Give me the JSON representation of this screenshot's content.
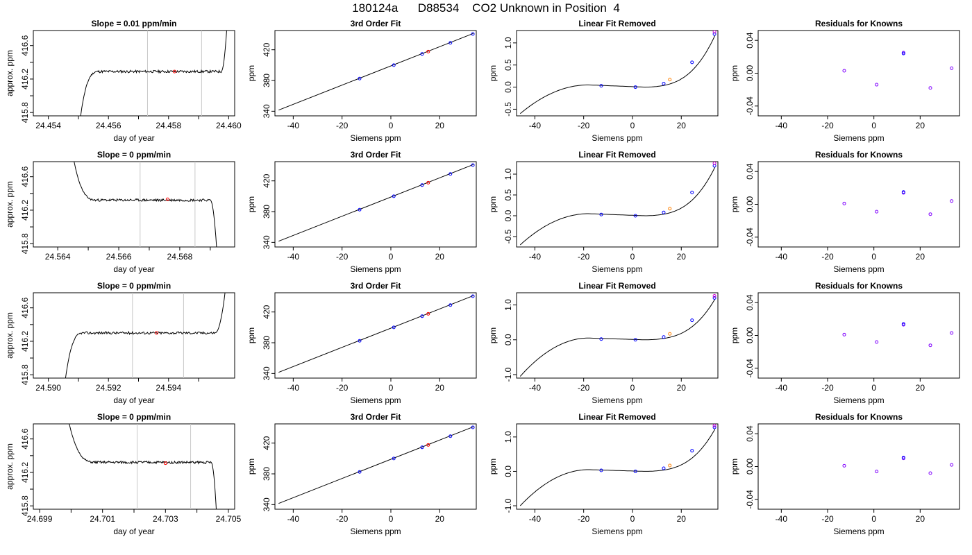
{
  "figure": {
    "title": "180124a      D88534    CO2 Unknown in Position  4"
  },
  "chart_data": [
    {
      "type": "line",
      "row": 1,
      "col": 1,
      "title": "Slope =  0.01  ppm/min",
      "xlabel": "day of year",
      "ylabel": "approx. ppm",
      "xlim": [
        24.4535,
        24.4602
      ],
      "ylim": [
        415.76,
        416.78
      ],
      "xticks": [
        24.454,
        24.456,
        24.458,
        24.46
      ],
      "xtick_labels": [
        "24.454",
        "24.456",
        "24.458",
        "24.460"
      ],
      "xminor_ticks": [
        24.455,
        24.457,
        24.459
      ],
      "yticks": [
        415.8,
        416.2,
        416.6
      ],
      "yminor_ticks": [
        416.0,
        416.4
      ],
      "ytick_labels": [
        "415.8",
        "416.2",
        "416.6"
      ],
      "vlines": [
        24.4573,
        24.4591
      ],
      "trace": {
        "start": 24.455,
        "end": 24.46,
        "rise_end": 24.4557,
        "plateau": 416.29,
        "bottom": 415.55,
        "top": 417.2,
        "jump_at": 24.45975,
        "jump_dir": "up",
        "seed": 11
      },
      "point": {
        "x": 24.4582,
        "y": 416.29,
        "color": "#ff0000"
      }
    },
    {
      "type": "scatter",
      "row": 1,
      "col": 2,
      "title": "3rd Order Fit",
      "xlabel": "Siemens ppm",
      "ylabel": "ppm",
      "xlim": [
        -47.5,
        35
      ],
      "ylim": [
        334,
        445
      ],
      "xticks": [
        -40,
        -20,
        0,
        20
      ],
      "xtick_labels": [
        "-40",
        "-20",
        "0",
        "20"
      ],
      "yticks": [
        340,
        380,
        420
      ],
      "ytick_labels": [
        "340",
        "380",
        "420"
      ],
      "curve": [
        [
          -46,
          341.5
        ],
        [
          33.8,
          441.2
        ]
      ],
      "known_points": [
        [
          -12.8,
          382.5
        ],
        [
          1.2,
          400.0
        ],
        [
          12.8,
          414.5
        ],
        [
          24.4,
          429.0
        ],
        [
          33.6,
          440.5
        ]
      ],
      "unknown_point": [
        15.3,
        417.6
      ],
      "known_color": "#0000ff",
      "unknown_color": "#ff0000"
    },
    {
      "type": "scatter",
      "row": 1,
      "col": 3,
      "title": "Linear Fit Removed",
      "xlabel": "Siemens ppm",
      "ylabel": "ppm",
      "xlim": [
        -47.5,
        35
      ],
      "ylim": [
        -0.65,
        1.28
      ],
      "xticks": [
        -40,
        -20,
        0,
        20
      ],
      "xtick_labels": [
        "-40",
        "-20",
        "0",
        "20"
      ],
      "yticks": [
        -0.5,
        0.0,
        0.5,
        1.0
      ],
      "ytick_labels": [
        "-0.5",
        "0.0",
        "0.5",
        "1.0"
      ],
      "curve_fn": {
        "a": 0.00027,
        "b": 0.0,
        "c": 0.0025,
        "x0": -18.0,
        "cubic_x": [
          -46,
          33.8
        ],
        "ends": [
          -0.6,
          1.22
        ]
      },
      "known_points": [
        [
          -12.8,
          0.03
        ],
        [
          1.2,
          0.0
        ],
        [
          12.8,
          0.08
        ],
        [
          24.4,
          0.56
        ],
        [
          33.6,
          1.2
        ]
      ],
      "known_points_2": [
        [
          33.6,
          1.25
        ]
      ],
      "unknown_point": [
        15.3,
        0.17
      ],
      "known_color": "#0000ff",
      "known2_color": "#d000d0",
      "unknown_color": "#ff8000"
    },
    {
      "type": "scatter",
      "row": 1,
      "col": 4,
      "title": "Residuals for Knowns",
      "xlabel": "Siemens ppm",
      "ylabel": "ppm",
      "xlim": [
        -50,
        37
      ],
      "ylim": [
        -0.052,
        0.052
      ],
      "xticks": [
        -40,
        -20,
        0,
        20
      ],
      "xtick_labels": [
        "-40",
        "-20",
        "0",
        "20"
      ],
      "yticks": [
        -0.04,
        0.0,
        0.04
      ],
      "ytick_labels": [
        "-0.04",
        "0.00",
        "0.04"
      ],
      "points_a": [
        [
          -12.8,
          0.003
        ],
        [
          1.2,
          -0.014
        ],
        [
          12.8,
          0.025
        ],
        [
          24.4,
          -0.018
        ],
        [
          33.6,
          0.006
        ]
      ],
      "points_b": [
        [
          12.8,
          0.024
        ]
      ],
      "color_a": "#8000ff",
      "color_b": "#0000ff"
    },
    {
      "type": "line",
      "row": 2,
      "col": 1,
      "title": "Slope =  0  ppm/min",
      "xlabel": "day of year",
      "ylabel": "approx. ppm",
      "xlim": [
        24.5632,
        24.5698
      ],
      "ylim": [
        415.76,
        416.78
      ],
      "xticks": [
        24.564,
        24.566,
        24.568
      ],
      "xtick_labels": [
        "24.564",
        "24.566",
        "24.568"
      ],
      "xminor_ticks": [
        24.565,
        24.567,
        24.569
      ],
      "yticks": [
        415.8,
        416.2,
        416.6
      ],
      "yminor_ticks": [
        416.0,
        416.4
      ],
      "ytick_labels": [
        "415.8",
        "416.2",
        "416.6"
      ],
      "vlines": [
        24.5667,
        24.5685
      ],
      "trace": {
        "start": 24.5645,
        "end": 24.56925,
        "rise_end": 24.5653,
        "plateau": 416.32,
        "bottom": 415.5,
        "top": 416.85,
        "jump_at": 24.569,
        "jump_dir": "down",
        "start_dir": "down",
        "seed": 23
      },
      "point": {
        "x": 24.5676,
        "y": 416.33,
        "color": "#ff0000"
      }
    },
    {
      "type": "scatter",
      "row": 2,
      "col": 2,
      "title": "3rd Order Fit",
      "xlabel": "Siemens ppm",
      "ylabel": "ppm",
      "xlim": [
        -47.5,
        35
      ],
      "ylim": [
        334,
        445
      ],
      "xticks": [
        -40,
        -20,
        0,
        20
      ],
      "xtick_labels": [
        "-40",
        "-20",
        "0",
        "20"
      ],
      "yticks": [
        340,
        380,
        420
      ],
      "ytick_labels": [
        "340",
        "380",
        "420"
      ],
      "curve": [
        [
          -46,
          341.5
        ],
        [
          33.8,
          441.2
        ]
      ],
      "known_points": [
        [
          -12.8,
          382.5
        ],
        [
          1.2,
          400.0
        ],
        [
          12.8,
          414.5
        ],
        [
          24.4,
          429.0
        ],
        [
          33.6,
          440.5
        ]
      ],
      "unknown_point": [
        15.3,
        417.6
      ],
      "known_color": "#0000ff",
      "unknown_color": "#ff0000"
    },
    {
      "type": "scatter",
      "row": 2,
      "col": 3,
      "title": "Linear Fit Removed",
      "xlabel": "Siemens ppm",
      "ylabel": "ppm",
      "xlim": [
        -47.5,
        35
      ],
      "ylim": [
        -0.75,
        1.3
      ],
      "xticks": [
        -40,
        -20,
        0,
        20
      ],
      "xtick_labels": [
        "-40",
        "-20",
        "0",
        "20"
      ],
      "yticks": [
        -0.5,
        0.0,
        0.5,
        1.0
      ],
      "ytick_labels": [
        "-0.5",
        "0.0",
        "0.5",
        "1.0"
      ],
      "curve_fn": {
        "cubic_x": [
          -46,
          33.8
        ],
        "ends": [
          -0.7,
          1.22
        ]
      },
      "known_points": [
        [
          -12.8,
          0.03
        ],
        [
          1.2,
          0.0
        ],
        [
          12.8,
          0.08
        ],
        [
          24.4,
          0.56
        ],
        [
          33.6,
          1.2
        ]
      ],
      "known_points_2": [
        [
          33.6,
          1.26
        ]
      ],
      "unknown_point": [
        15.3,
        0.17
      ],
      "known_color": "#0000ff",
      "known2_color": "#d000d0",
      "unknown_color": "#ff8000"
    },
    {
      "type": "scatter",
      "row": 2,
      "col": 4,
      "title": "Residuals for Knowns",
      "xlabel": "Siemens ppm",
      "ylabel": "ppm",
      "xlim": [
        -50,
        37
      ],
      "ylim": [
        -0.052,
        0.052
      ],
      "xticks": [
        -40,
        -20,
        0,
        20
      ],
      "xtick_labels": [
        "-40",
        "-20",
        "0",
        "20"
      ],
      "yticks": [
        -0.04,
        0.0,
        0.04
      ],
      "ytick_labels": [
        "-0.04",
        "0.00",
        "0.04"
      ],
      "points_a": [
        [
          -12.8,
          0.001
        ],
        [
          1.2,
          -0.009
        ],
        [
          12.8,
          0.014
        ],
        [
          24.4,
          -0.012
        ],
        [
          33.6,
          0.004
        ]
      ],
      "points_b": [
        [
          12.8,
          0.015
        ]
      ],
      "color_a": "#8000ff",
      "color_b": "#0000ff"
    },
    {
      "type": "line",
      "row": 3,
      "col": 1,
      "title": "Slope =  0  ppm/min",
      "xlabel": "day of year",
      "ylabel": "approx. ppm",
      "xlim": [
        24.5895,
        24.5962
      ],
      "ylim": [
        415.76,
        416.78
      ],
      "xticks": [
        24.59,
        24.592,
        24.594
      ],
      "xtick_labels": [
        "24.590",
        "24.592",
        "24.594"
      ],
      "xminor_ticks": [
        24.591,
        24.593,
        24.595
      ],
      "yticks": [
        415.8,
        416.2,
        416.6
      ],
      "yminor_ticks": [
        416.0,
        416.4
      ],
      "ytick_labels": [
        "415.8",
        "416.2",
        "416.6"
      ],
      "vlines": [
        24.5928,
        24.5945
      ],
      "trace": {
        "start": 24.5905,
        "end": 24.596,
        "rise_end": 24.5912,
        "plateau": 416.3,
        "bottom": 415.55,
        "top": 417.2,
        "jump_at": 24.59555,
        "jump_dir": "up",
        "seed": 37
      },
      "point": {
        "x": 24.5936,
        "y": 416.3,
        "color": "#ff0000"
      }
    },
    {
      "type": "scatter",
      "row": 3,
      "col": 2,
      "title": "3rd Order Fit",
      "xlabel": "Siemens ppm",
      "ylabel": "ppm",
      "xlim": [
        -47.5,
        35
      ],
      "ylim": [
        334,
        445
      ],
      "xticks": [
        -40,
        -20,
        0,
        20
      ],
      "xtick_labels": [
        "-40",
        "-20",
        "0",
        "20"
      ],
      "yticks": [
        340,
        380,
        420
      ],
      "ytick_labels": [
        "340",
        "380",
        "420"
      ],
      "curve": [
        [
          -46,
          341.5
        ],
        [
          33.8,
          441.2
        ]
      ],
      "known_points": [
        [
          -12.8,
          382.5
        ],
        [
          1.2,
          400.0
        ],
        [
          12.8,
          414.5
        ],
        [
          24.4,
          429.0
        ],
        [
          33.6,
          440.5
        ]
      ],
      "unknown_point": [
        15.3,
        417.6
      ],
      "known_color": "#0000ff",
      "unknown_color": "#ff0000"
    },
    {
      "type": "scatter",
      "row": 3,
      "col": 3,
      "title": "Linear Fit Removed",
      "xlabel": "Siemens ppm",
      "ylabel": "ppm",
      "xlim": [
        -47.5,
        35
      ],
      "ylim": [
        -1.1,
        1.35
      ],
      "xticks": [
        -40,
        -20,
        0,
        20
      ],
      "xtick_labels": [
        "-40",
        "-20",
        "0",
        "20"
      ],
      "yticks": [
        -1.0,
        0.0,
        1.0
      ],
      "ytick_labels": [
        "-1.0",
        "0.0",
        "1.0"
      ],
      "curve_fn": {
        "cubic_x": [
          -46,
          33.8
        ],
        "ends": [
          -1.05,
          1.22
        ]
      },
      "known_points": [
        [
          -12.8,
          0.02
        ],
        [
          1.2,
          0.0
        ],
        [
          12.8,
          0.08
        ],
        [
          24.4,
          0.56
        ],
        [
          33.6,
          1.2
        ]
      ],
      "known_points_2": [
        [
          33.6,
          1.26
        ]
      ],
      "unknown_point": [
        15.3,
        0.17
      ],
      "known_color": "#0000ff",
      "known2_color": "#d000d0",
      "unknown_color": "#ff8000"
    },
    {
      "type": "scatter",
      "row": 3,
      "col": 4,
      "title": "Residuals for Knowns",
      "xlabel": "Siemens ppm",
      "ylabel": "ppm",
      "xlim": [
        -50,
        37
      ],
      "ylim": [
        -0.052,
        0.052
      ],
      "xticks": [
        -40,
        -20,
        0,
        20
      ],
      "xtick_labels": [
        "-40",
        "-20",
        "0",
        "20"
      ],
      "yticks": [
        -0.04,
        0.0,
        0.04
      ],
      "ytick_labels": [
        "-0.04",
        "0.00",
        "0.04"
      ],
      "points_a": [
        [
          -12.8,
          0.001
        ],
        [
          1.2,
          -0.008
        ],
        [
          12.8,
          0.013
        ],
        [
          24.4,
          -0.012
        ],
        [
          33.6,
          0.003
        ]
      ],
      "points_b": [
        [
          12.8,
          0.014
        ]
      ],
      "color_a": "#8000ff",
      "color_b": "#0000ff"
    },
    {
      "type": "line",
      "row": 4,
      "col": 1,
      "title": "Slope =  0  ppm/min",
      "xlabel": "day of year",
      "ylabel": "approx. ppm",
      "xlim": [
        24.6988,
        24.7052
      ],
      "ylim": [
        415.76,
        416.78
      ],
      "xticks": [
        24.699,
        24.701,
        24.703,
        24.705
      ],
      "xtick_labels": [
        "24.699",
        "24.701",
        "24.703",
        "24.705"
      ],
      "xminor_ticks": [
        24.7,
        24.702,
        24.704
      ],
      "yticks": [
        415.8,
        416.2,
        416.6
      ],
      "yminor_ticks": [
        416.0,
        416.4
      ],
      "ytick_labels": [
        "415.8",
        "416.2",
        "416.6"
      ],
      "vlines": [
        24.7021,
        24.7038
      ],
      "trace": {
        "start": 24.6999,
        "end": 24.70465,
        "rise_end": 24.7008,
        "plateau": 416.32,
        "bottom": 415.5,
        "top": 416.85,
        "jump_at": 24.70445,
        "jump_dir": "down",
        "start_dir": "down",
        "seed": 51
      },
      "point": {
        "x": 24.703,
        "y": 416.31,
        "color": "#ff0000"
      }
    },
    {
      "type": "scatter",
      "row": 4,
      "col": 2,
      "title": "3rd Order Fit",
      "xlabel": "Siemens ppm",
      "ylabel": "ppm",
      "xlim": [
        -47.5,
        35
      ],
      "ylim": [
        334,
        445
      ],
      "xticks": [
        -40,
        -20,
        0,
        20
      ],
      "xtick_labels": [
        "-40",
        "-20",
        "0",
        "20"
      ],
      "yticks": [
        340,
        380,
        420
      ],
      "ytick_labels": [
        "340",
        "380",
        "420"
      ],
      "curve": [
        [
          -46,
          341.5
        ],
        [
          33.8,
          441.2
        ]
      ],
      "known_points": [
        [
          -12.8,
          382.5
        ],
        [
          1.2,
          400.0
        ],
        [
          12.8,
          414.5
        ],
        [
          24.4,
          429.0
        ],
        [
          33.6,
          440.5
        ]
      ],
      "unknown_point": [
        15.3,
        417.6
      ],
      "known_color": "#0000ff",
      "unknown_color": "#ff0000"
    },
    {
      "type": "scatter",
      "row": 4,
      "col": 3,
      "title": "Linear Fit Removed",
      "xlabel": "Siemens ppm",
      "ylabel": "ppm",
      "xlim": [
        -47.5,
        35
      ],
      "ylim": [
        -1.1,
        1.38
      ],
      "xticks": [
        -40,
        -20,
        0,
        20
      ],
      "xtick_labels": [
        "-40",
        "-20",
        "0",
        "20"
      ],
      "yticks": [
        -1.0,
        0.0,
        1.0
      ],
      "ytick_labels": [
        "-1.0",
        "0.0",
        "1.0"
      ],
      "curve_fn": {
        "cubic_x": [
          -46,
          33.8
        ],
        "ends": [
          -1.0,
          1.28
        ]
      },
      "known_points": [
        [
          -12.8,
          0.03
        ],
        [
          1.2,
          0.0
        ],
        [
          12.8,
          0.09
        ],
        [
          24.4,
          0.6
        ],
        [
          33.6,
          1.28
        ]
      ],
      "known_points_2": [
        [
          33.6,
          1.33
        ]
      ],
      "unknown_point": [
        15.3,
        0.17
      ],
      "known_color": "#0000ff",
      "known2_color": "#d000d0",
      "unknown_color": "#ff8000"
    },
    {
      "type": "scatter",
      "row": 4,
      "col": 4,
      "title": "Residuals for Knowns",
      "xlabel": "Siemens ppm",
      "ylabel": "ppm",
      "xlim": [
        -50,
        37
      ],
      "ylim": [
        -0.052,
        0.052
      ],
      "xticks": [
        -40,
        -20,
        0,
        20
      ],
      "xtick_labels": [
        "-40",
        "-20",
        "0",
        "20"
      ],
      "yticks": [
        -0.04,
        0.0,
        0.04
      ],
      "ytick_labels": [
        "-0.04",
        "0.00",
        "0.04"
      ],
      "points_a": [
        [
          -12.8,
          0.001
        ],
        [
          1.2,
          -0.006
        ],
        [
          12.8,
          0.01
        ],
        [
          24.4,
          -0.008
        ],
        [
          33.6,
          0.002
        ]
      ],
      "points_b": [
        [
          12.8,
          0.011
        ]
      ],
      "color_a": "#8000ff",
      "color_b": "#0000ff"
    }
  ]
}
